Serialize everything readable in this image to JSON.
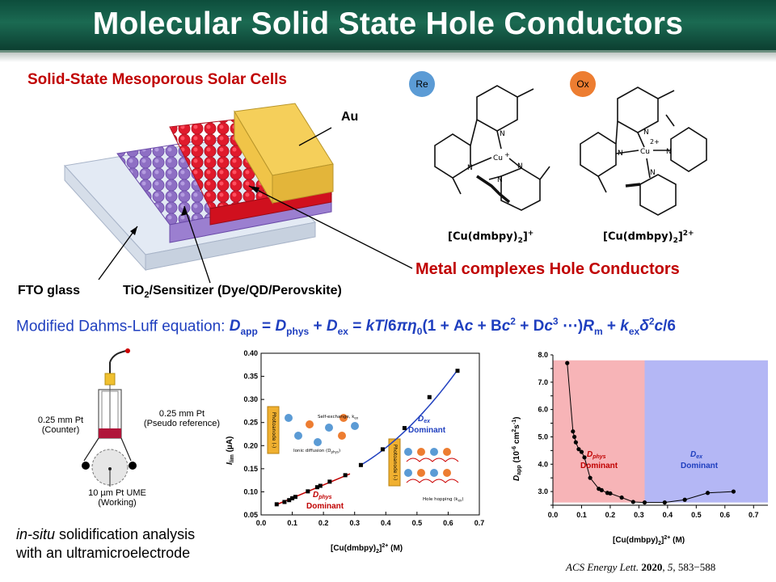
{
  "title": "Molecular Solid State Hole Conductors",
  "cell_section": {
    "heading": "Solid-State Mesoporous Solar Cells",
    "label_au": "Au",
    "label_fto": "FTO glass",
    "label_tio2_pre": "TiO",
    "label_tio2_sub": "2",
    "label_tio2_post": "/Sensitizer (Dye/QD/Perovskite)"
  },
  "molecules": {
    "re_badge": "Re",
    "ox_badge": "Ox",
    "re_formula_main": "[Cu(dmbpy)",
    "re_formula_sub": "2",
    "re_formula_end": "]",
    "re_formula_sup": "+",
    "ox_formula_main": "[Cu(dmbpy)",
    "ox_formula_sub": "2",
    "ox_formula_end": "]",
    "ox_formula_sup": "2+",
    "atom_cu": "Cu",
    "atom_n": "N",
    "charge_re": "+",
    "charge_ox": "2+",
    "re_color": "#5b9bd5",
    "ox_color": "#ed7d31"
  },
  "metal_complexes_label": "Metal complexes Hole Conductors",
  "equation": {
    "prefix": "Modified Dahms-Luff equation:",
    "D": "D",
    "app": "app",
    "eq1": " = ",
    "phys": "phys",
    "plus": " + ",
    "ex": "ex",
    "eq2": " = ",
    "kT": "kT",
    "slash6": "/6",
    "pi_eta": "πη",
    "zero": "0",
    "paren": "(1 + A",
    "c": "c",
    "plusB": " + B",
    "two": "2",
    "plusD": " + D",
    "three": "3",
    "dots": " ⋯)",
    "R": "R",
    "m": "m",
    "plusk": " + ",
    "k": "k",
    "ex2": "ex",
    "delta": "δ",
    "c2": "c",
    "over6": "/6"
  },
  "electrode": {
    "counter_l1": "0.25 mm Pt",
    "counter_l2": "(Counter)",
    "pseudo_l1": "0.25 mm Pt",
    "pseudo_l2": "(Pseudo reference)",
    "ume_l1": "10 µm Pt UME",
    "ume_l2": "(Working)",
    "caption_italic": "in-situ",
    "caption_rest": " solidification analysis",
    "caption_l2": "with an ultramicroelectrode"
  },
  "chart_data": [
    {
      "type": "scatter",
      "xlabel": "[Cu(dmbpy)2]2+ (M)",
      "ylabel": "Ilim (µA)",
      "xlim": [
        0.0,
        0.7
      ],
      "ylim": [
        0.05,
        0.4
      ],
      "x_ticks": [
        "0.0",
        "0.1",
        "0.2",
        "0.3",
        "0.4",
        "0.5",
        "0.6",
        "0.7"
      ],
      "y_ticks": [
        "0.05",
        "0.10",
        "0.15",
        "0.20",
        "0.25",
        "0.30",
        "0.35",
        "0.40"
      ],
      "series": [
        {
          "name": "Dphys Dominant",
          "x": [
            0.05,
            0.075,
            0.09,
            0.1,
            0.11,
            0.15,
            0.18,
            0.19,
            0.22,
            0.27
          ],
          "y": [
            0.073,
            0.078,
            0.082,
            0.086,
            0.089,
            0.101,
            0.11,
            0.113,
            0.122,
            0.136
          ]
        },
        {
          "name": "Dex Dominant",
          "x": [
            0.32,
            0.39,
            0.46,
            0.54,
            0.63
          ],
          "y": [
            0.158,
            0.192,
            0.238,
            0.305,
            0.362
          ]
        }
      ],
      "annotations": [
        "Dex Dominant",
        "Dphys Dominant",
        "Photoanode (-)",
        "Self-exchange, kex",
        "Ionic diffusion (Dphys)",
        "Hole hopping (kex)",
        "Re",
        "Ox",
        "h+",
        "e-"
      ],
      "inset_texts": {
        "photoanode": "Photoanode (-)",
        "self_exchange": "Self-exchange, k",
        "ex": "ex",
        "ionic": "Ionic diffusion (D",
        "phys": "phys",
        "close": ")",
        "hopping": "Hole hopping (k",
        "hplus": "h⁺"
      }
    },
    {
      "type": "line",
      "xlabel": "[Cu(dmbpy)2]2+ (M)",
      "ylabel": "Dapp (10-6 cm2s-1)",
      "xlim": [
        0.0,
        0.75
      ],
      "ylim": [
        2.5,
        8.0
      ],
      "x_ticks": [
        "0.0",
        "0.1",
        "0.2",
        "0.3",
        "0.4",
        "0.5",
        "0.6",
        "0.7"
      ],
      "y_ticks": [
        "2.5",
        "3.0",
        "3.5",
        "4.0",
        "4.5",
        "5.0",
        "5.5",
        "6.0",
        "6.5",
        "7.0",
        "7.5",
        "8.0"
      ],
      "regions": [
        {
          "name": "Dphys Dominant",
          "from": 0.0,
          "to": 0.32,
          "color": "#f7b4b7"
        },
        {
          "name": "Dex Dominant",
          "from": 0.32,
          "to": 0.75,
          "color": "#b4b7f5"
        }
      ],
      "x": [
        0.05,
        0.07,
        0.075,
        0.08,
        0.09,
        0.1,
        0.11,
        0.13,
        0.16,
        0.17,
        0.19,
        0.2,
        0.24,
        0.28,
        0.32,
        0.39,
        0.46,
        0.54,
        0.63
      ],
      "y": [
        7.7,
        5.2,
        5.0,
        4.8,
        4.55,
        4.45,
        4.25,
        3.5,
        3.1,
        3.05,
        2.95,
        2.93,
        2.78,
        2.62,
        2.6,
        2.6,
        2.7,
        2.95,
        3.0
      ]
    }
  ],
  "citation": {
    "journal": "ACS Energy Lett.",
    "year": "2020",
    "volume": "5",
    "pages": ", 583−588"
  }
}
